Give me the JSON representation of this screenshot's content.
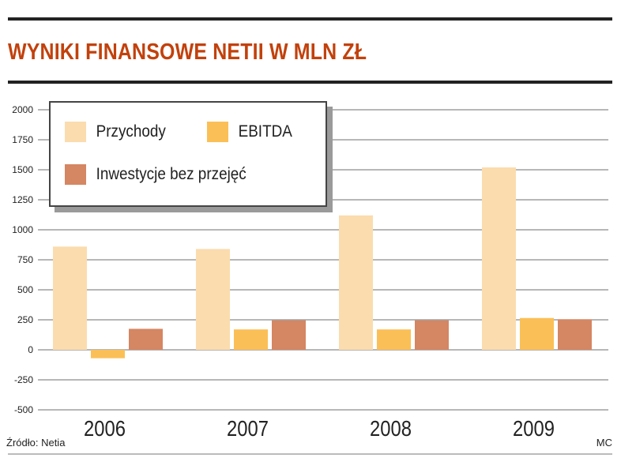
{
  "header": {
    "title": "WYNIKI FINANSOWE NETII W MLN ZŁ"
  },
  "footer": {
    "source": "Źródło: Netia",
    "author": "MC"
  },
  "colors": {
    "title": "#c2410c",
    "revenue": "#fbdcae",
    "ebitda": "#fbbf57",
    "investment": "#d58663",
    "grid": "#6f6f6f"
  },
  "chart_data": {
    "type": "bar",
    "categories": [
      "2006",
      "2007",
      "2008",
      "2009"
    ],
    "series": [
      {
        "name": "Przychody",
        "values": [
          860,
          840,
          1120,
          1520
        ]
      },
      {
        "name": "EBITDA",
        "values": [
          -70,
          170,
          170,
          265
        ]
      },
      {
        "name": "Inwestycje bez przejęć",
        "values": [
          175,
          245,
          245,
          255
        ]
      }
    ],
    "title": "WYNIKI FINANSOWE NETII W MLN ZŁ",
    "ylim": [
      -500,
      2000
    ],
    "yticks": [
      "2000",
      "1750",
      "1500",
      "1250",
      "1000",
      "750",
      "500",
      "250",
      "0",
      "-250",
      "-500"
    ],
    "grid": true,
    "legend": "top-left"
  }
}
